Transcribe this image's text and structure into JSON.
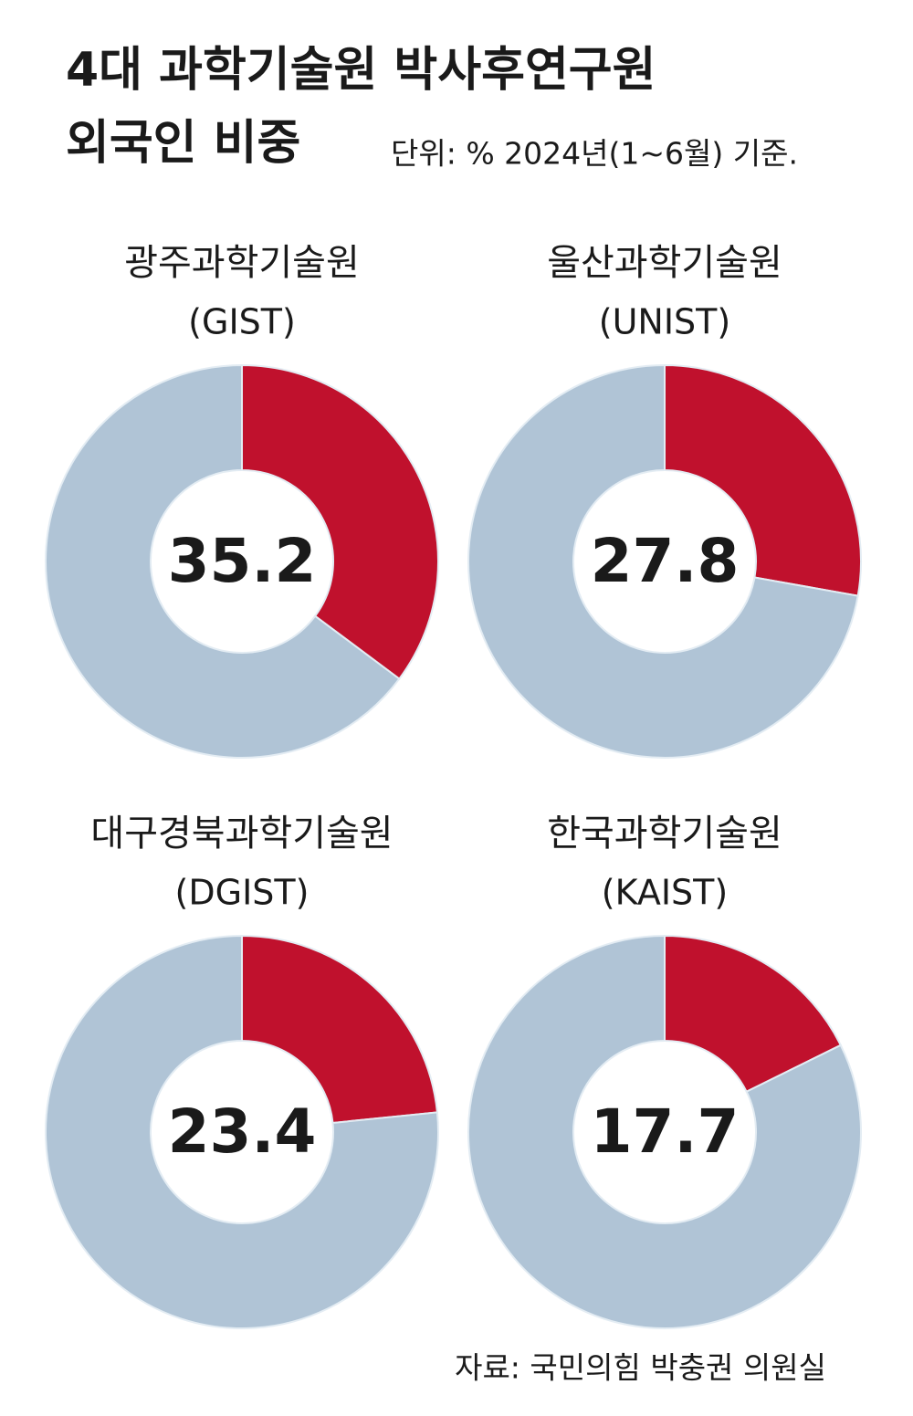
{
  "title": [
    "4대 과학기술원 박사후연구원",
    "외국인 비중"
  ],
  "subtitle": "단위: %   2024년(1~6월) 기준.",
  "source": "자료: 국민의힘 박충권 의원실",
  "chart_data": [
    {
      "type": "donut",
      "title": "광주과학기술원",
      "subtitle": "(GIST)",
      "values": [
        35.2,
        64.8
      ],
      "colors": [
        "#c0112d",
        "#b0c4d6"
      ]
    },
    {
      "type": "donut",
      "title": "울산과학기술원",
      "subtitle": "(UNIST)",
      "values": [
        27.8,
        72.2
      ],
      "colors": [
        "#c0112d",
        "#b0c4d6"
      ]
    },
    {
      "type": "donut",
      "title": "대구경북과학기술원",
      "subtitle": "(DGIST)",
      "values": [
        23.4,
        76.6
      ],
      "colors": [
        "#c0112d",
        "#b0c4d6"
      ]
    },
    {
      "type": "donut",
      "title": "한국과학기술원",
      "subtitle": "(KAIST)",
      "values": [
        17.7,
        82.3
      ],
      "colors": [
        "#c0112d",
        "#b0c4d6"
      ]
    }
  ]
}
